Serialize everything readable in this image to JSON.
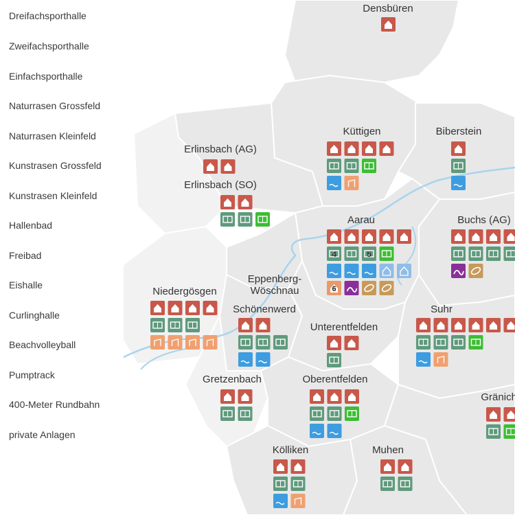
{
  "legend": {
    "items": [
      {
        "label": "Dreifachsporthalle",
        "color": "#c8584a",
        "icon": "triple-hall-icon"
      },
      {
        "label": "Zweifachsporthalle",
        "color": "#c8584a",
        "icon": "double-hall-icon"
      },
      {
        "label": "Einfachsporthalle",
        "color": "#c8584a",
        "icon": "single-hall-icon"
      },
      {
        "label": "Naturrasen Grossfeld",
        "color": "#5f9a7c",
        "icon": "natural-grass-large-field-icon"
      },
      {
        "label": "Naturrasen Kleinfeld",
        "color": "#5f9a7c",
        "icon": "natural-grass-small-field-icon"
      },
      {
        "label": "Kunstrasen Grossfeld",
        "color": "#3dbd34",
        "icon": "artificial-turf-large-field-icon"
      },
      {
        "label": "Kunstrasen Kleinfeld",
        "color": "#3dbd34",
        "icon": "artificial-turf-small-field-icon"
      },
      {
        "label": "Hallenbad",
        "color": "#3d9de0",
        "icon": "indoor-pool-icon"
      },
      {
        "label": "Freibad",
        "color": "#3d9de0",
        "icon": "outdoor-pool-icon"
      },
      {
        "label": "Eishalle",
        "color": "#8fbde6",
        "icon": "ice-rink-icon"
      },
      {
        "label": "Curlinghalle",
        "color": "#8fbde6",
        "icon": "curling-hall-icon"
      },
      {
        "label": "Beachvolleyball",
        "color": "#f0a070",
        "icon": "beachvolleyball-icon"
      },
      {
        "label": "Pumptrack",
        "color": "#8a2f9a",
        "icon": "pumptrack-icon"
      },
      {
        "label": "400-Meter Rundbahn",
        "color": "#c79a5a",
        "icon": "running-track-icon"
      },
      {
        "label": "private Anlagen",
        "color": "#e89a6a",
        "icon": "private-facility-icon"
      }
    ]
  },
  "colors": {
    "hall": "#c8584a",
    "grass": "#5f9a7c",
    "turf": "#3dbd34",
    "pool": "#3d9de0",
    "ice": "#8fbde6",
    "beach": "#f0a070",
    "pump": "#8a2f9a",
    "track": "#c79a5a",
    "private": "#e89a6a",
    "river": "#a9d3ee",
    "region_fill": "#e8e8e8",
    "region_fill_light": "#f2f2f2",
    "region_border": "#ffffff"
  },
  "towns": [
    {
      "name": "Densbüren",
      "rows": [
        [
          "hall"
        ]
      ]
    },
    {
      "name": "Küttigen",
      "rows": [
        [
          "hall",
          "hall",
          "hall",
          "hall"
        ],
        [
          "grass",
          "grass",
          "turf"
        ],
        [
          "pool",
          "beach"
        ]
      ]
    },
    {
      "name": "Biberstein",
      "rows": [
        [
          "hall"
        ],
        [
          "grass"
        ],
        [
          "pool"
        ]
      ]
    },
    {
      "name": "Erlinsbach (AG)",
      "rows": [
        [
          "hall",
          "hall"
        ]
      ]
    },
    {
      "name": "Erlinsbach (SO)",
      "rows": [
        [
          "hall",
          "hall"
        ],
        [
          "grass",
          "grass",
          "turf"
        ]
      ]
    },
    {
      "name": "Aarau",
      "rows": [
        [
          "hall",
          "hall",
          "hall",
          "hall",
          "hall"
        ],
        [
          "grass",
          "grass",
          "grass",
          "turf"
        ],
        [
          "pool",
          "pool",
          "pool",
          "ice",
          "ice"
        ],
        [
          "private",
          "pump",
          "track",
          "track"
        ]
      ],
      "badges": [
        "4",
        "5",
        "6"
      ]
    },
    {
      "name": "Buchs (AG)",
      "rows": [
        [
          "hall",
          "hall",
          "hall",
          "hall"
        ],
        [
          "grass",
          "grass",
          "grass",
          "grass"
        ],
        [
          "pump",
          "track"
        ]
      ]
    },
    {
      "name": "Niedergösgen",
      "rows": [
        [
          "hall",
          "hall",
          "hall",
          "hall"
        ],
        [
          "grass",
          "grass",
          "grass"
        ],
        [
          "beach",
          "beach",
          "beach",
          "beach"
        ]
      ]
    },
    {
      "name": "Eppenberg-",
      "name2": "Wöschnau",
      "rows": []
    },
    {
      "name": "Schönenwerd",
      "rows": [
        [
          "hall",
          "hall"
        ],
        [
          "grass",
          "grass",
          "grass"
        ],
        [
          "pool",
          "pool"
        ]
      ]
    },
    {
      "name": "Unterentfelden",
      "rows": [
        [
          "hall",
          "hall"
        ],
        [
          "grass"
        ]
      ]
    },
    {
      "name": "Suhr",
      "rows": [
        [
          "hall",
          "hall",
          "hall",
          "hall",
          "hall",
          "hall"
        ],
        [
          "grass",
          "grass",
          "grass",
          "turf"
        ],
        [
          "pool",
          "beach"
        ]
      ]
    },
    {
      "name": "Gretzenbach",
      "rows": [
        [
          "hall",
          "hall"
        ],
        [
          "grass",
          "grass"
        ]
      ]
    },
    {
      "name": "Oberentfelden",
      "rows": [
        [
          "hall",
          "hall",
          "hall"
        ],
        [
          "grass",
          "grass",
          "turf"
        ],
        [
          "pool",
          "pool"
        ]
      ]
    },
    {
      "name": "Gränichen",
      "rows": [
        [
          "hall",
          "hall"
        ],
        [
          "grass",
          "turf"
        ]
      ]
    },
    {
      "name": "Kölliken",
      "rows": [
        [
          "hall",
          "hall"
        ],
        [
          "grass",
          "grass"
        ],
        [
          "pool",
          "beach"
        ]
      ]
    },
    {
      "name": "Muhen",
      "rows": [
        [
          "hall",
          "hall"
        ],
        [
          "grass",
          "grass"
        ]
      ]
    }
  ]
}
